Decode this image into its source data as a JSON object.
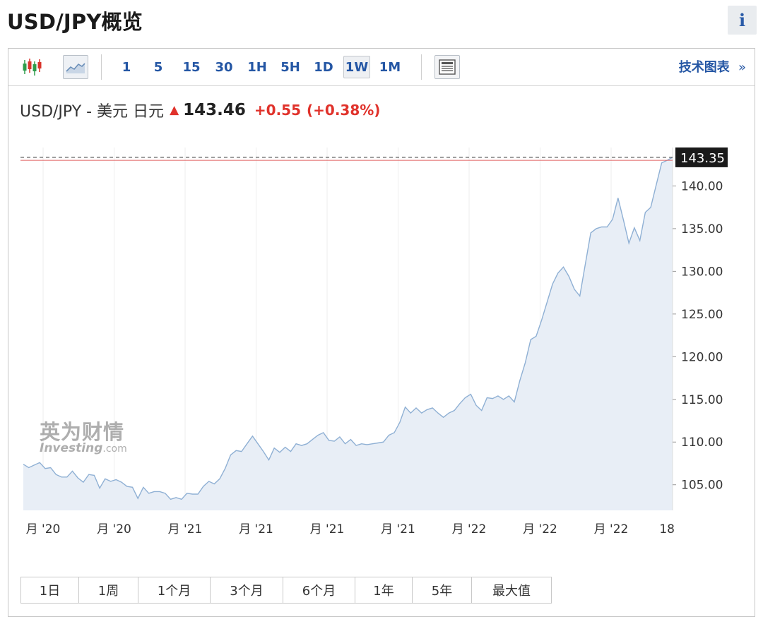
{
  "page": {
    "title": "USD/JPY概览",
    "info_label": "i"
  },
  "toolbar": {
    "timeframes": [
      "1",
      "5",
      "15",
      "30",
      "1H",
      "5H",
      "1D",
      "1W",
      "1M"
    ],
    "active_timeframe": "1W",
    "tech_chart_label": "技术图表",
    "tech_chart_arrow": "»",
    "icons": [
      "candlestick-icon",
      "area-chart-icon",
      "news-icon"
    ]
  },
  "quote": {
    "name": "USD/JPY - 美元 日元",
    "price": "143.46",
    "change": "+0.55",
    "change_pct": "(+0.38%)",
    "direction_icon": "up-arrow-icon",
    "up_color": "#e0322b"
  },
  "watermark": {
    "cn": "英为财情",
    "en": "Investing",
    "en_suffix": ".com"
  },
  "chart_data": {
    "type": "area",
    "title": "",
    "xlabel": "",
    "ylabel": "",
    "ylim": [
      102.0,
      144.5
    ],
    "yticks": [
      105,
      110,
      115,
      120,
      125,
      130,
      135,
      140
    ],
    "ytick_labels": [
      "105.00",
      "110.00",
      "115.00",
      "120.00",
      "125.00",
      "130.00",
      "135.00",
      "140.00"
    ],
    "x_tick_labels": [
      "月 '20",
      "月 '20",
      "月 '21",
      "月 '21",
      "月 '21",
      "月 '21",
      "月 '22",
      "月 '22",
      "月 '22",
      "18"
    ],
    "last_price": 143.35,
    "last_price_label": "143.35",
    "prev_close": 143.0,
    "grid": "vertical",
    "line_color": "#8fb0d4",
    "fill_color": "#e8eef6",
    "prev_close_color": "#e06060",
    "series": [
      {
        "values": [
          107.4,
          107.0,
          107.3,
          107.6,
          106.9,
          107.0,
          106.2,
          105.9,
          105.9,
          106.6,
          105.8,
          105.3,
          106.2,
          106.1,
          104.6,
          105.7,
          105.4,
          105.6,
          105.3,
          104.8,
          104.7,
          103.4,
          104.7,
          104.0,
          104.2,
          104.2,
          104.0,
          103.3,
          103.5,
          103.3,
          104.0,
          103.9,
          103.9,
          104.8,
          105.4,
          105.1,
          105.7,
          106.9,
          108.5,
          109.0,
          108.9,
          109.8,
          110.7,
          109.8,
          108.9,
          107.9,
          109.3,
          108.8,
          109.4,
          108.9,
          109.8,
          109.6,
          109.8,
          110.3,
          110.8,
          111.1,
          110.2,
          110.1,
          110.6,
          109.8,
          110.3,
          109.6,
          109.8,
          109.7,
          109.8,
          109.9,
          110.0,
          110.8,
          111.1,
          112.3,
          114.1,
          113.4,
          114.0,
          113.4,
          113.8,
          114.0,
          113.4,
          112.9,
          113.4,
          113.7,
          114.5,
          115.2,
          115.6,
          114.3,
          113.7,
          115.2,
          115.1,
          115.4,
          115.0,
          115.4,
          114.7,
          117.2,
          119.3,
          122.0,
          122.4,
          124.3,
          126.4,
          128.5,
          129.8,
          130.5,
          129.4,
          127.9,
          127.1,
          130.8,
          134.5,
          135.0,
          135.2,
          135.2,
          136.1,
          138.6,
          136.0,
          133.3,
          135.1,
          133.6,
          136.9,
          137.5,
          140.1,
          142.7,
          143.0,
          143.35
        ]
      }
    ]
  }
}
